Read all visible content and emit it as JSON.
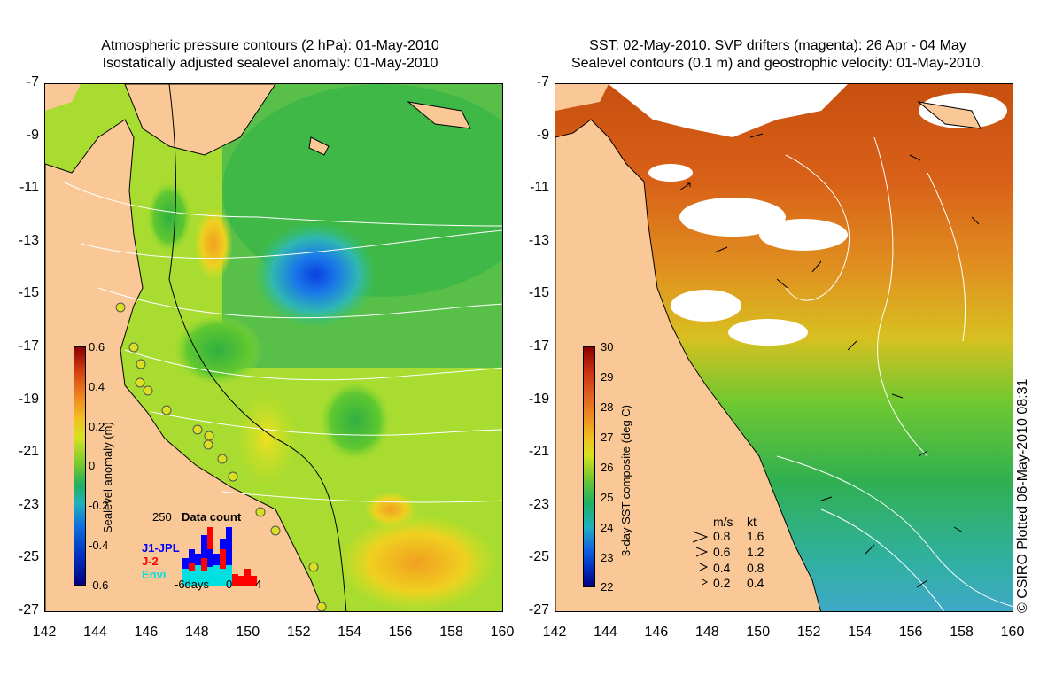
{
  "left_panel": {
    "title_line1": "Atmospheric pressure contours (2 hPa): 01-May-2010",
    "title_line2": "Isostatically adjusted sealevel anomaly: 01-May-2010",
    "colorbar": {
      "label": "Sealevel anomaly (m)",
      "ticks": [
        "0.6",
        "0.4",
        "0.2",
        "0",
        "-0.2",
        "-0.4",
        "-0.6"
      ],
      "range": [
        -0.6,
        0.6
      ]
    },
    "data_count": {
      "title": "Data count",
      "ymax_label": "250",
      "series": [
        {
          "name": "J1-JPL",
          "color": "#0000ff"
        },
        {
          "name": "J-2",
          "color": "#ff0000"
        },
        {
          "name": "Envi",
          "color": "#00e0e0"
        }
      ],
      "xlabels": [
        "-6days",
        "0",
        "4"
      ]
    }
  },
  "right_panel": {
    "title_line1": "SST: 02-May-2010. SVP drifters (magenta): 26 Apr - 04 May",
    "title_line2": "Sealevel contours (0.1 m) and geostrophic velocity: 01-May-2010.",
    "colorbar": {
      "label": "3-day SST composite (deg C)",
      "ticks": [
        "30",
        "29",
        "28",
        "27",
        "26",
        "25",
        "24",
        "23",
        "22"
      ],
      "range": [
        22,
        30
      ]
    },
    "velocity_legend": {
      "header_ms": "m/s",
      "header_kt": "kt",
      "rows": [
        {
          "ms": "0.8",
          "kt": "1.6"
        },
        {
          "ms": "0.6",
          "kt": "1.2"
        },
        {
          "ms": "0.4",
          "kt": "0.8"
        },
        {
          "ms": "0.2",
          "kt": "0.4"
        }
      ]
    }
  },
  "axes": {
    "y_ticks": [
      "-7",
      "-9",
      "-11",
      "-13",
      "-15",
      "-17",
      "-19",
      "-21",
      "-23",
      "-25",
      "-27"
    ],
    "x_ticks": [
      "142",
      "144",
      "146",
      "148",
      "150",
      "152",
      "154",
      "156",
      "158",
      "160"
    ],
    "lat_range": [
      -27,
      -7
    ],
    "lon_range": [
      142,
      160
    ]
  },
  "credit": "© CSIRO Plotted 06-May-2010 08:31",
  "colors": {
    "land": "#fac896",
    "contour": "#ffffff",
    "coast": "#000000"
  }
}
